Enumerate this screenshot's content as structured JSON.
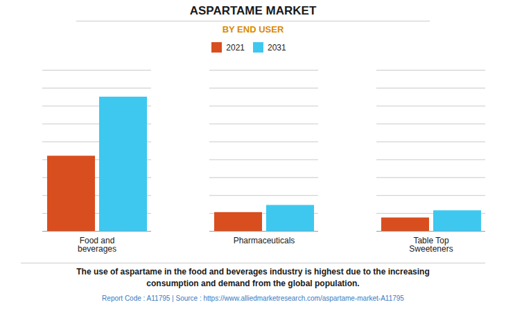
{
  "chart_data": {
    "type": "bar",
    "title": "ASPARTAME MARKET",
    "subtitle": "BY END USER",
    "categories": [
      "Food and\nbeverages",
      "Pharmaceuticals",
      "Table Top\nSweeteners"
    ],
    "series": [
      {
        "name": "2021",
        "color": "#d94e1f",
        "values": [
          4.2,
          1.05,
          0.75
        ]
      },
      {
        "name": "2031",
        "color": "#3ec8f0",
        "values": [
          7.5,
          1.45,
          1.15
        ]
      }
    ],
    "ylim": [
      0,
      9
    ],
    "yticks": [
      0,
      1,
      2,
      3,
      4,
      5,
      6,
      7,
      8,
      9
    ],
    "grid": true,
    "tick_labels": "x",
    "legend": "top",
    "caption": "The use of aspartame in the food and beverages industry is highest due to the increasing\nconsumption and demand from the global population.",
    "source": "Report Code : A11795  |  Source : https://www.alliedmarketresearch.com/aspartame-market-A11795"
  }
}
